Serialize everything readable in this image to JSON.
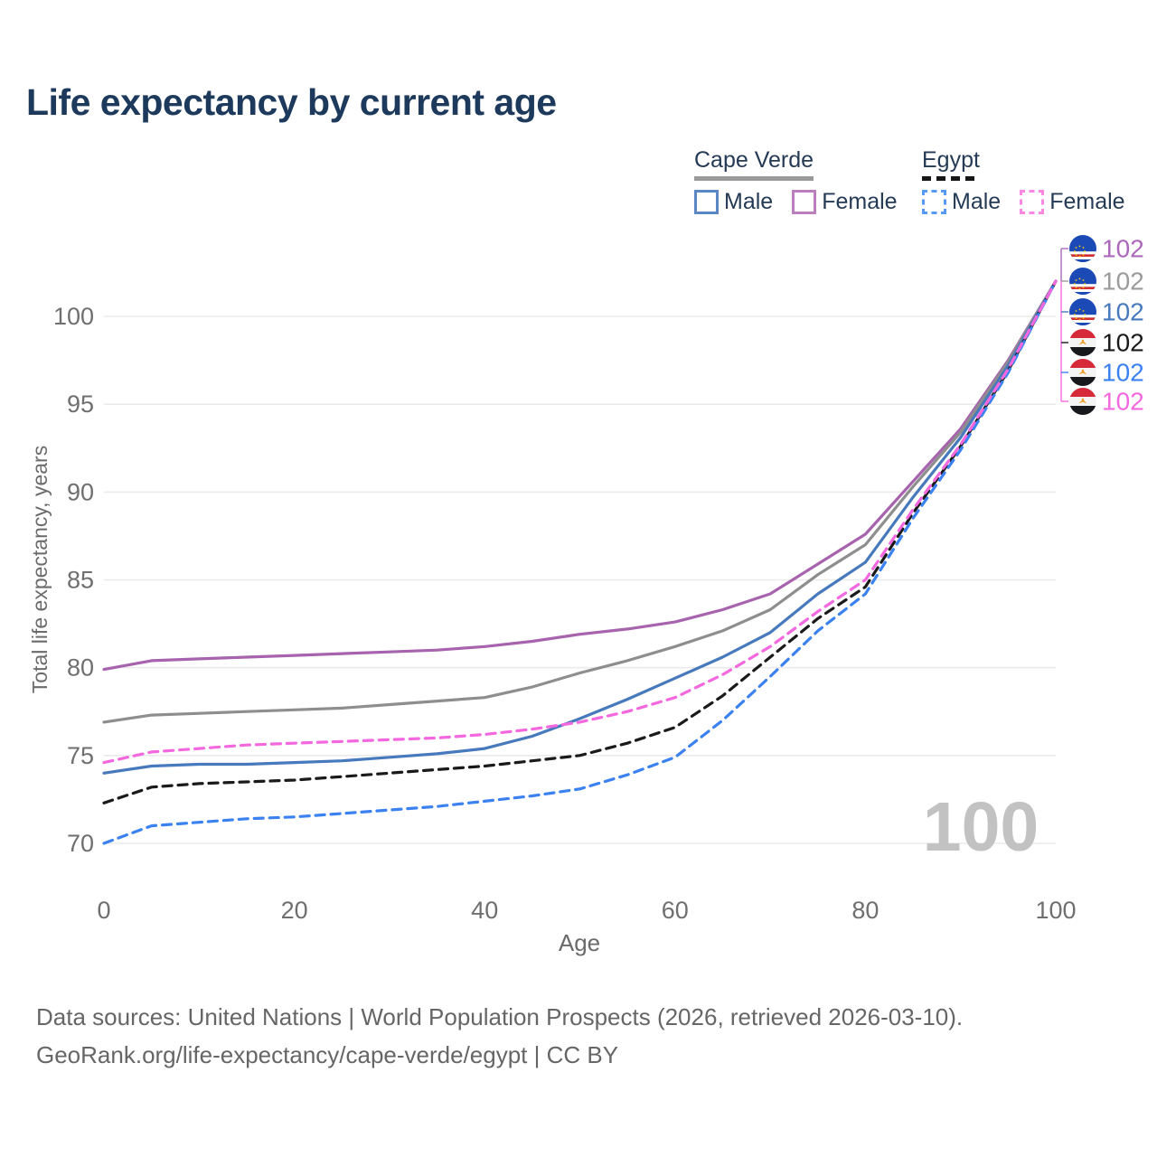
{
  "title": "Life expectancy by current age",
  "legend": {
    "groups": [
      {
        "label": "Cape Verde",
        "line_style": "solid",
        "underline_color": "#9a9a9a",
        "items": [
          {
            "label": "Male",
            "color": "#5b87c5",
            "dashed": false
          },
          {
            "label": "Female",
            "color": "#bb7fbd",
            "dashed": false
          }
        ]
      },
      {
        "label": "Egypt",
        "line_style": "dashed",
        "underline_color": "#161616",
        "items": [
          {
            "label": "Male",
            "color": "#559af5",
            "dashed": true
          },
          {
            "label": "Female",
            "color": "#fb87e3",
            "dashed": true
          }
        ]
      }
    ]
  },
  "chart_data": {
    "type": "line",
    "title": "Life expectancy by current age",
    "xlabel": "Age",
    "ylabel": "Total life expectancy, years",
    "xlim": [
      0,
      100
    ],
    "ylim": [
      68.5,
      102.5
    ],
    "xticks": [
      0,
      20,
      40,
      60,
      80,
      100
    ],
    "yticks": [
      70,
      75,
      80,
      85,
      90,
      95,
      100
    ],
    "grid": "horizontal",
    "x": [
      0,
      5,
      10,
      15,
      20,
      25,
      30,
      35,
      40,
      45,
      50,
      55,
      60,
      65,
      70,
      75,
      80,
      85,
      90,
      95,
      100
    ],
    "series": [
      {
        "name": "Cape Verde Female",
        "country": "cape-verde",
        "color": "#a763ae",
        "dash": null,
        "values": [
          79.9,
          80.4,
          80.5,
          80.6,
          80.7,
          80.8,
          80.9,
          81.0,
          81.2,
          81.5,
          81.9,
          82.2,
          82.6,
          83.3,
          84.2,
          85.9,
          87.6,
          90.6,
          93.6,
          97.5,
          102
        ]
      },
      {
        "name": "Cape Verde Both sexes",
        "country": "cape-verde",
        "color": "#8e8e8e",
        "dash": null,
        "values": [
          76.9,
          77.3,
          77.4,
          77.5,
          77.6,
          77.7,
          77.9,
          78.1,
          78.3,
          78.9,
          79.7,
          80.4,
          81.2,
          82.1,
          83.3,
          85.3,
          87.0,
          90.3,
          93.4,
          97.4,
          102
        ]
      },
      {
        "name": "Cape Verde Male",
        "country": "cape-verde",
        "color": "#4779bd",
        "dash": null,
        "values": [
          74.0,
          74.4,
          74.5,
          74.5,
          74.6,
          74.7,
          74.9,
          75.1,
          75.4,
          76.1,
          77.1,
          78.2,
          79.4,
          80.6,
          82.0,
          84.2,
          86.0,
          89.7,
          93.1,
          97.2,
          102
        ]
      },
      {
        "name": "Egypt Both sexes",
        "country": "egypt",
        "color": "#1a1a1a",
        "dash": "10 7",
        "values": [
          72.3,
          73.2,
          73.4,
          73.5,
          73.6,
          73.8,
          74.0,
          74.2,
          74.4,
          74.7,
          75.0,
          75.7,
          76.6,
          78.4,
          80.6,
          82.8,
          84.6,
          88.8,
          92.6,
          96.9,
          102
        ]
      },
      {
        "name": "Egypt Male",
        "country": "egypt",
        "color": "#3b82f0",
        "dash": "10 7",
        "values": [
          70.0,
          71.0,
          71.2,
          71.4,
          71.5,
          71.7,
          71.9,
          72.1,
          72.4,
          72.7,
          73.1,
          73.9,
          74.9,
          77.0,
          79.5,
          82.1,
          84.2,
          88.5,
          92.4,
          96.8,
          102
        ]
      },
      {
        "name": "Egypt Female",
        "country": "egypt",
        "color": "#f468df",
        "dash": "10 7",
        "values": [
          74.6,
          75.2,
          75.4,
          75.6,
          75.7,
          75.8,
          75.9,
          76.0,
          76.2,
          76.5,
          76.9,
          77.5,
          78.3,
          79.6,
          81.2,
          83.2,
          85.0,
          89.0,
          92.7,
          97.0,
          102
        ]
      }
    ]
  },
  "endpoint_labels": [
    {
      "country": "cape-verde",
      "value": "102",
      "color": "#ab68bc"
    },
    {
      "country": "cape-verde",
      "value": "102",
      "color": "#9b9b9b"
    },
    {
      "country": "cape-verde",
      "value": "102",
      "color": "#4779bd"
    },
    {
      "country": "egypt",
      "value": "102",
      "color": "#1a1a1a"
    },
    {
      "country": "egypt",
      "value": "102",
      "color": "#3b82f0"
    },
    {
      "country": "egypt",
      "value": "102",
      "color": "#f468df"
    }
  ],
  "watermark": "100",
  "footer": {
    "line1": "Data sources: United Nations | World Population Prospects (2026, retrieved 2026-03-10).",
    "line2": "GeoRank.org/life-expectancy/cape-verde/egypt | CC BY"
  }
}
